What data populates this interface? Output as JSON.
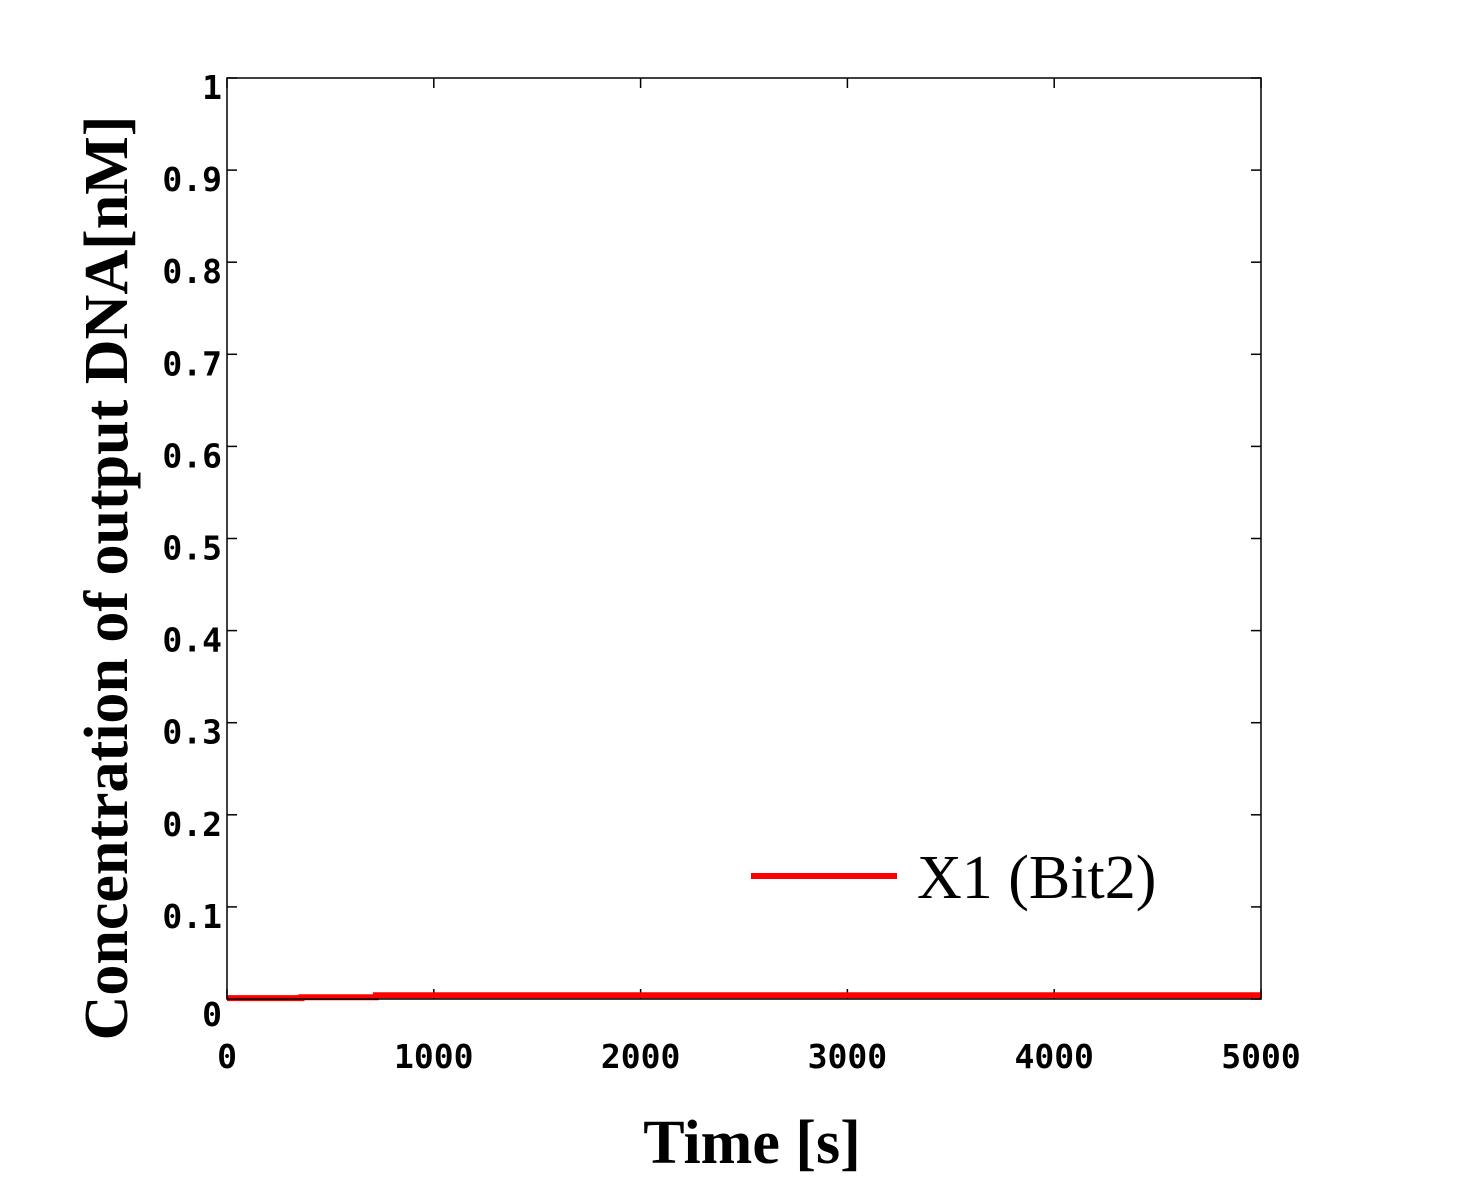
{
  "chart_data": {
    "type": "line",
    "title": "",
    "xlabel": "Time [s]",
    "ylabel": "Concentration of output DNA[nM]",
    "xlim": [
      0,
      5000
    ],
    "ylim": [
      0,
      1
    ],
    "xticks": [
      0,
      1000,
      2000,
      3000,
      4000,
      5000
    ],
    "xtick_labels": [
      "0",
      "1000",
      "2000",
      "3000",
      "4000",
      "5000"
    ],
    "yticks": [
      0,
      0.1,
      0.2,
      0.3,
      0.4,
      0.5,
      0.6,
      0.7,
      0.8,
      0.9,
      1
    ],
    "ytick_labels": [
      "0",
      "0.1",
      "0.2",
      "0.3",
      "0.4",
      "0.5",
      "0.6",
      "0.7",
      "0.8",
      "0.9",
      "1"
    ],
    "grid": false,
    "legend": {
      "position": "bottom-right",
      "entries": [
        "X1 (Bit2)"
      ]
    },
    "series": [
      {
        "name": "X1 (Bit2)",
        "color": "#ff0000",
        "x": [
          0,
          360,
          360,
          720,
          720,
          1500,
          2500,
          3500,
          4500,
          5000
        ],
        "y": [
          0.001,
          0.001,
          0.002,
          0.002,
          0.004,
          0.004,
          0.004,
          0.004,
          0.004,
          0.004
        ]
      }
    ]
  }
}
